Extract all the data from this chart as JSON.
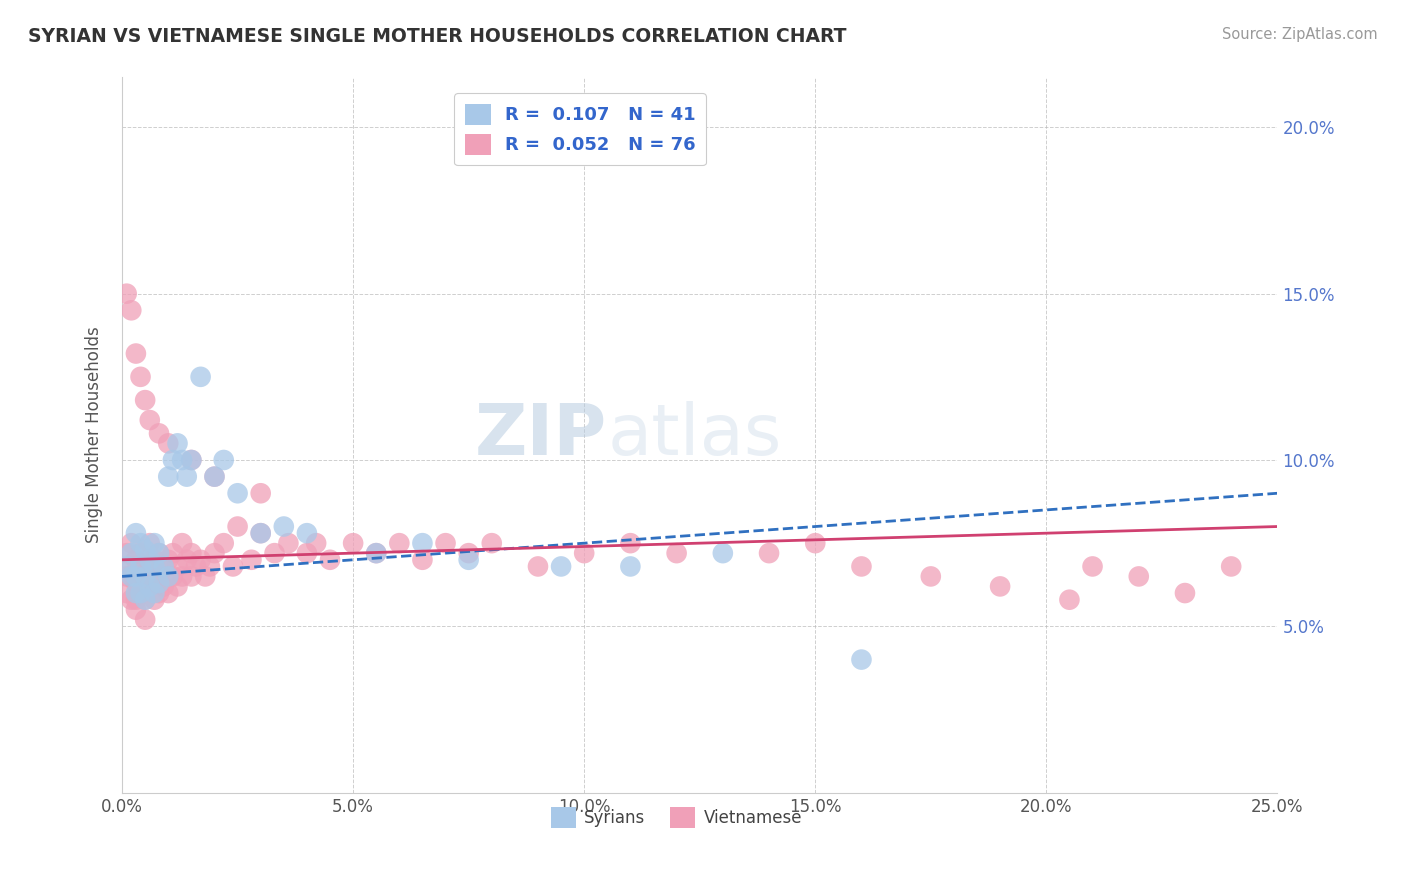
{
  "title": "SYRIAN VS VIETNAMESE SINGLE MOTHER HOUSEHOLDS CORRELATION CHART",
  "source": "Source: ZipAtlas.com",
  "ylabel": "Single Mother Households",
  "xlim": [
    0.0,
    0.25
  ],
  "ylim": [
    0.0,
    0.215
  ],
  "xticks": [
    0.0,
    0.05,
    0.1,
    0.15,
    0.2,
    0.25
  ],
  "xticklabels": [
    "0.0%",
    "5.0%",
    "10.0%",
    "15.0%",
    "20.0%",
    "25.0%"
  ],
  "yticks": [
    0.05,
    0.1,
    0.15,
    0.2
  ],
  "yticklabels": [
    "5.0%",
    "10.0%",
    "15.0%",
    "20.0%"
  ],
  "syrian_color": "#a8c8e8",
  "vietnamese_color": "#f0a0b8",
  "syrian_line_color": "#3070c0",
  "vietnamese_line_color": "#d04070",
  "legend_text_color": "#3366cc",
  "legend_R_syrian": "R =  0.107",
  "legend_N_syrian": "N = 41",
  "legend_R_vietnamese": "R =  0.052",
  "legend_N_vietnamese": "N = 76",
  "legend_label_syrian": "Syrians",
  "legend_label_vietnamese": "Vietnamese",
  "watermark_zip": "ZIP",
  "watermark_atlas": "atlas",
  "background_color": "#ffffff",
  "grid_color": "#bbbbbb",
  "title_color": "#333333",
  "axis_color": "#666666",
  "yaxis_tick_color": "#5577cc",
  "syrian_points_x": [
    0.001,
    0.002,
    0.002,
    0.003,
    0.003,
    0.003,
    0.004,
    0.004,
    0.004,
    0.005,
    0.005,
    0.005,
    0.006,
    0.006,
    0.007,
    0.007,
    0.007,
    0.008,
    0.008,
    0.009,
    0.01,
    0.01,
    0.011,
    0.012,
    0.013,
    0.014,
    0.015,
    0.017,
    0.02,
    0.022,
    0.025,
    0.03,
    0.035,
    0.04,
    0.055,
    0.065,
    0.075,
    0.095,
    0.11,
    0.13,
    0.16
  ],
  "syrian_points_y": [
    0.068,
    0.072,
    0.065,
    0.078,
    0.065,
    0.06,
    0.075,
    0.068,
    0.06,
    0.073,
    0.065,
    0.058,
    0.07,
    0.062,
    0.075,
    0.068,
    0.06,
    0.072,
    0.063,
    0.068,
    0.095,
    0.065,
    0.1,
    0.105,
    0.1,
    0.095,
    0.1,
    0.125,
    0.095,
    0.1,
    0.09,
    0.078,
    0.08,
    0.078,
    0.072,
    0.075,
    0.07,
    0.068,
    0.068,
    0.072,
    0.04
  ],
  "vietnamese_points_x": [
    0.001,
    0.001,
    0.001,
    0.002,
    0.002,
    0.002,
    0.002,
    0.003,
    0.003,
    0.003,
    0.003,
    0.004,
    0.004,
    0.004,
    0.005,
    0.005,
    0.005,
    0.006,
    0.006,
    0.006,
    0.007,
    0.007,
    0.007,
    0.008,
    0.008,
    0.008,
    0.009,
    0.009,
    0.01,
    0.01,
    0.01,
    0.011,
    0.011,
    0.012,
    0.012,
    0.013,
    0.013,
    0.014,
    0.015,
    0.015,
    0.016,
    0.017,
    0.018,
    0.019,
    0.02,
    0.022,
    0.024,
    0.025,
    0.028,
    0.03,
    0.033,
    0.036,
    0.04,
    0.042,
    0.045,
    0.05,
    0.055,
    0.06,
    0.065,
    0.07,
    0.075,
    0.08,
    0.09,
    0.1,
    0.11,
    0.12,
    0.14,
    0.15,
    0.16,
    0.175,
    0.19,
    0.205,
    0.21,
    0.22,
    0.23,
    0.24
  ],
  "vietnamese_points_y": [
    0.065,
    0.072,
    0.06,
    0.068,
    0.065,
    0.058,
    0.075,
    0.07,
    0.063,
    0.058,
    0.055,
    0.068,
    0.062,
    0.072,
    0.065,
    0.058,
    0.052,
    0.068,
    0.062,
    0.075,
    0.065,
    0.07,
    0.058,
    0.072,
    0.065,
    0.06,
    0.068,
    0.062,
    0.07,
    0.065,
    0.06,
    0.072,
    0.065,
    0.068,
    0.062,
    0.075,
    0.065,
    0.07,
    0.072,
    0.065,
    0.068,
    0.07,
    0.065,
    0.068,
    0.072,
    0.075,
    0.068,
    0.08,
    0.07,
    0.078,
    0.072,
    0.075,
    0.072,
    0.075,
    0.07,
    0.075,
    0.072,
    0.075,
    0.07,
    0.075,
    0.072,
    0.075,
    0.068,
    0.072,
    0.075,
    0.072,
    0.072,
    0.075,
    0.068,
    0.065,
    0.062,
    0.058,
    0.068,
    0.065,
    0.06,
    0.068
  ],
  "extra_viet_x": [
    0.001,
    0.002,
    0.003,
    0.004,
    0.005,
    0.006,
    0.008,
    0.01,
    0.015,
    0.02,
    0.03
  ],
  "extra_viet_y": [
    0.15,
    0.145,
    0.132,
    0.125,
    0.118,
    0.112,
    0.108,
    0.105,
    0.1,
    0.095,
    0.09
  ],
  "syrian_R": 0.107,
  "vietnamese_R": 0.052
}
